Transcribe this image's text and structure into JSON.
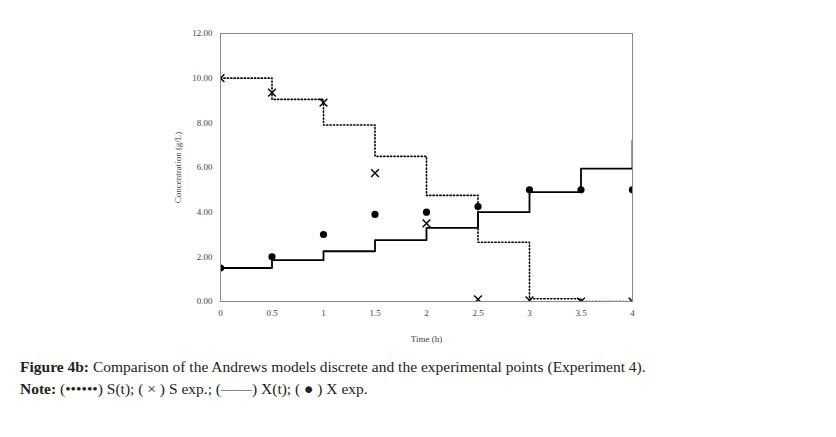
{
  "chart_data": {
    "type": "line",
    "title": "Figure 4b: Comparison of the Andrews models discrete and the experimental points (Experiment 4).",
    "note": "Note: (••••••) S(t); ( × ) S exp.; (——) X(t); ( ● ) X exp.",
    "x_label": "Time (h)",
    "y_label": "Concentration (g/L)",
    "x": [
      0,
      0.5,
      1,
      1.5,
      2,
      2.5,
      3,
      3.5,
      4
    ],
    "series": [
      {
        "name": "S(t)",
        "type": "line",
        "line_style": "dotted",
        "color": "#000000",
        "values": [
          10.0,
          9.05,
          7.9,
          6.5,
          4.75,
          2.65,
          0.12,
          0.0,
          0.0
        ]
      },
      {
        "name": "S exp.",
        "type": "scatter",
        "marker": "x",
        "color": "#000000",
        "values": [
          10.0,
          9.35,
          8.9,
          5.75,
          3.5,
          0.1,
          0.05,
          0.0,
          0.0
        ]
      },
      {
        "name": "X(t)",
        "type": "line",
        "line_style": "solid",
        "color": "#000000",
        "values": [
          1.5,
          1.85,
          2.25,
          2.75,
          3.3,
          4.0,
          4.9,
          5.95,
          7.2
        ]
      },
      {
        "name": "X exp.",
        "type": "scatter",
        "marker": "circle",
        "color": "#000000",
        "values": [
          1.5,
          2.0,
          3.0,
          3.9,
          4.0,
          4.25,
          5.0,
          5.0,
          5.0
        ]
      }
    ],
    "xlim": [
      0,
      4
    ],
    "xticks": [
      0,
      0.5,
      1,
      1.5,
      2,
      2.5,
      3,
      3.5,
      4
    ],
    "ylim": [
      0,
      12
    ],
    "yticks": [
      {
        "value": 0,
        "label": "0.00"
      },
      {
        "value": 2,
        "label": "2.00"
      },
      {
        "value": 4,
        "label": "4.00"
      },
      {
        "value": 6,
        "label": "6.00"
      },
      {
        "value": 8,
        "label": "8.00"
      },
      {
        "value": 10,
        "label": "10.00"
      },
      {
        "value": 12,
        "label": "12.00"
      }
    ],
    "grid": false
  }
}
